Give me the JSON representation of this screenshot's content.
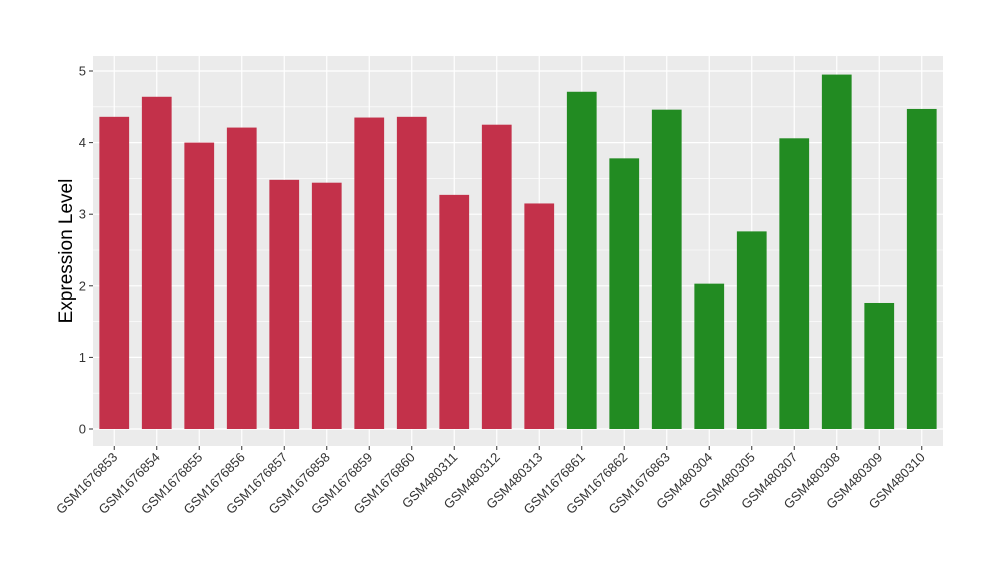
{
  "chart_data": {
    "type": "bar",
    "title": "",
    "xlabel": "",
    "ylabel": "Expression Level",
    "ylim": [
      0,
      5.2
    ],
    "yticks": [
      0,
      1,
      2,
      3,
      4,
      5
    ],
    "grid": true,
    "categories": [
      "GSM1676853",
      "GSM1676854",
      "GSM1676855",
      "GSM1676856",
      "GSM1676857",
      "GSM1676858",
      "GSM1676859",
      "GSM1676860",
      "GSM480311",
      "GSM480312",
      "GSM480313",
      "GSM1676861",
      "GSM1676862",
      "GSM1676863",
      "GSM480304",
      "GSM480305",
      "GSM480307",
      "GSM480308",
      "GSM480309",
      "GSM480310"
    ],
    "values": [
      4.36,
      4.64,
      4.0,
      4.21,
      3.48,
      3.44,
      4.35,
      4.36,
      3.27,
      4.25,
      3.15,
      4.71,
      3.78,
      4.46,
      2.03,
      2.76,
      4.06,
      4.95,
      1.76,
      4.47
    ],
    "groups": [
      "red",
      "red",
      "red",
      "red",
      "red",
      "red",
      "red",
      "red",
      "red",
      "red",
      "red",
      "green",
      "green",
      "green",
      "green",
      "green",
      "green",
      "green",
      "green",
      "green"
    ],
    "colors": {
      "red": "#c3314a",
      "green": "#228b22"
    },
    "panel_background": "#ebebeb",
    "grid_color": "#ffffff"
  }
}
